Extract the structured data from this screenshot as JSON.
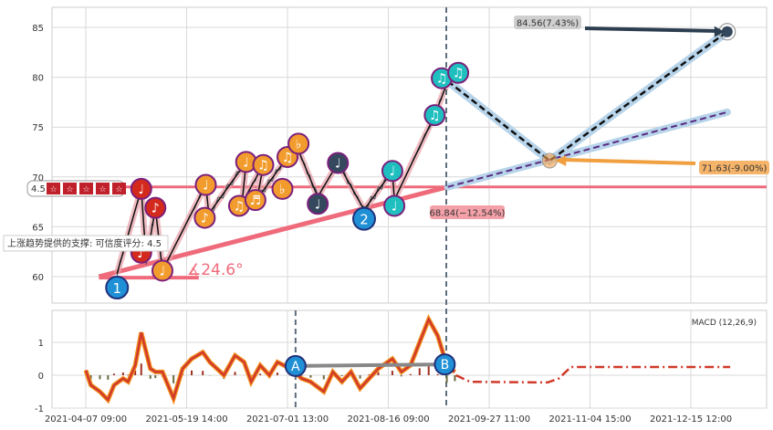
{
  "chart_data": {
    "type": "line",
    "title": "",
    "x_ticks": [
      "2021-04-07 09:00",
      "2021-05-19 14:00",
      "2021-07-01 13:00",
      "2021-08-16 09:00",
      "2021-09-27 11:00",
      "2021-11-04 15:00",
      "2021-12-15 12:00"
    ],
    "price_panel": {
      "ylim": [
        57.5,
        87
      ],
      "y_ticks": [
        60,
        65,
        70,
        75,
        80,
        85
      ],
      "zigzag": [
        [
          0.31,
          60.3
        ],
        [
          0.55,
          68.8
        ],
        [
          0.6,
          61.5
        ],
        [
          0.69,
          66.9
        ],
        [
          0.76,
          60.6
        ],
        [
          1.19,
          69.2
        ],
        [
          1.22,
          66.3
        ],
        [
          1.59,
          71.5
        ],
        [
          1.55,
          67.4
        ],
        [
          1.76,
          71.2
        ],
        [
          1.7,
          67.8
        ],
        [
          2.0,
          72.0
        ],
        [
          2.09,
          73.1
        ],
        [
          2.3,
          68.0
        ],
        [
          2.5,
          71.4
        ],
        [
          2.76,
          66.7
        ],
        [
          3.04,
          70.6
        ],
        [
          3.06,
          67.7
        ],
        [
          3.46,
          76.2
        ],
        [
          3.59,
          79.6
        ]
      ],
      "markers": [
        {
          "x": 0.55,
          "p": 68.8,
          "color": "#d42a1e",
          "glyph": "♩"
        },
        {
          "x": 0.69,
          "p": 66.9,
          "color": "#d42a1e",
          "glyph": "♪"
        },
        {
          "x": 0.55,
          "p": 62.4,
          "color": "#d42a1e",
          "glyph": "♪"
        },
        {
          "x": 0.76,
          "p": 60.6,
          "color": "#f39c2e",
          "glyph": "♩"
        },
        {
          "x": 1.19,
          "p": 69.2,
          "color": "#f39c2e",
          "glyph": "♩"
        },
        {
          "x": 1.18,
          "p": 65.9,
          "color": "#f39c2e",
          "glyph": "♪"
        },
        {
          "x": 1.59,
          "p": 71.5,
          "color": "#f39c2e",
          "glyph": "♩"
        },
        {
          "x": 1.52,
          "p": 67.1,
          "color": "#f39c2e",
          "glyph": "♫"
        },
        {
          "x": 1.66,
          "p": 67.6,
          "color": "#f39c2e",
          "glyph": "♬"
        },
        {
          "x": 1.76,
          "p": 71.2,
          "color": "#f39c2e",
          "glyph": "♫"
        },
        {
          "x": 1.95,
          "p": 68.8,
          "color": "#f39c2e",
          "glyph": "♭"
        },
        {
          "x": 2.0,
          "p": 72.0,
          "color": "#f39c2e",
          "glyph": "♫"
        },
        {
          "x": 2.09,
          "p": 73.1,
          "color": "#f39c2e",
          "glyph": "♭"
        },
        {
          "x": 2.3,
          "p": 67.3,
          "color": "#34495e",
          "glyph": "♩"
        },
        {
          "x": 2.5,
          "p": 71.4,
          "color": "#34495e",
          "glyph": "♩"
        },
        {
          "x": 3.04,
          "p": 70.6,
          "color": "#20bfbf",
          "glyph": "♩"
        },
        {
          "x": 3.06,
          "p": 67.1,
          "color": "#20bfbf",
          "glyph": "♩"
        },
        {
          "x": 3.46,
          "p": 76.2,
          "color": "#20bfbf",
          "glyph": "♫"
        },
        {
          "x": 3.53,
          "p": 79.9,
          "color": "#20bfbf",
          "glyph": "♫"
        },
        {
          "x": 3.59,
          "p": 80.1,
          "color": "#20bfbf",
          "glyph": "♫"
        }
      ],
      "pivots": [
        {
          "label": "1",
          "x": 0.31,
          "p": 58.9
        },
        {
          "label": "2",
          "x": 2.76,
          "p": 65.8
        }
      ],
      "support_level": 69.0,
      "support_score_label": "4.5",
      "support_tooltip": "上涨趋势提供的支撑: 可信度评分: 4.5",
      "trend_angle_label": "∡24.6°",
      "targets": {
        "low": {
          "label": "68.84(−12.54%)",
          "x": 3.58,
          "p": 68.84
        },
        "mid": {
          "label": "71.63(-9.00%)",
          "x": 4.6,
          "p": 71.63
        },
        "high": {
          "label": "84.56(7.43%)",
          "x": 6.36,
          "p": 84.56
        }
      }
    },
    "macd_panel": {
      "label": "MACD (12,26,9)",
      "ylim": [
        -1,
        2
      ],
      "y_ticks": [
        -1,
        0,
        1
      ],
      "series": [
        [
          0,
          0.15
        ],
        [
          0.05,
          -0.3
        ],
        [
          0.14,
          -0.5
        ],
        [
          0.22,
          -0.75
        ],
        [
          0.28,
          -0.3
        ],
        [
          0.37,
          -0.1
        ],
        [
          0.42,
          -0.2
        ],
        [
          0.49,
          0.3
        ],
        [
          0.55,
          1.3
        ],
        [
          0.64,
          0.2
        ],
        [
          0.69,
          0.1
        ],
        [
          0.76,
          0.1
        ],
        [
          0.87,
          -0.7
        ],
        [
          0.96,
          0.2
        ],
        [
          1.05,
          0.5
        ],
        [
          1.16,
          0.7
        ],
        [
          1.23,
          0.4
        ],
        [
          1.37,
          0
        ],
        [
          1.48,
          0.6
        ],
        [
          1.57,
          0.4
        ],
        [
          1.64,
          -0.2
        ],
        [
          1.73,
          0.3
        ],
        [
          1.82,
          0
        ],
        [
          1.9,
          0.4
        ],
        [
          2.03,
          0.2
        ],
        [
          2.14,
          -0.1
        ],
        [
          2.23,
          -0.2
        ],
        [
          2.36,
          -0.5
        ],
        [
          2.45,
          0.1
        ],
        [
          2.54,
          -0.2
        ],
        [
          2.63,
          0.1
        ],
        [
          2.72,
          -0.4
        ],
        [
          2.81,
          -0.1
        ],
        [
          2.9,
          0.2
        ],
        [
          3.04,
          0.5
        ],
        [
          3.13,
          0.1
        ],
        [
          3.22,
          0.3
        ],
        [
          3.31,
          1.0
        ],
        [
          3.4,
          1.7
        ],
        [
          3.49,
          1.2
        ],
        [
          3.58,
          0.3
        ],
        [
          3.66,
          0.1
        ]
      ],
      "forecast": [
        [
          3.67,
          0
        ],
        [
          3.81,
          -0.2
        ],
        [
          4.58,
          -0.22
        ],
        [
          4.69,
          -0.1
        ],
        [
          4.81,
          0.25
        ],
        [
          6.39,
          0.25
        ]
      ],
      "points": [
        {
          "label": "A",
          "x": 2.08,
          "v": 0.28
        },
        {
          "label": "B",
          "x": 3.56,
          "v": 0.33
        }
      ]
    }
  }
}
